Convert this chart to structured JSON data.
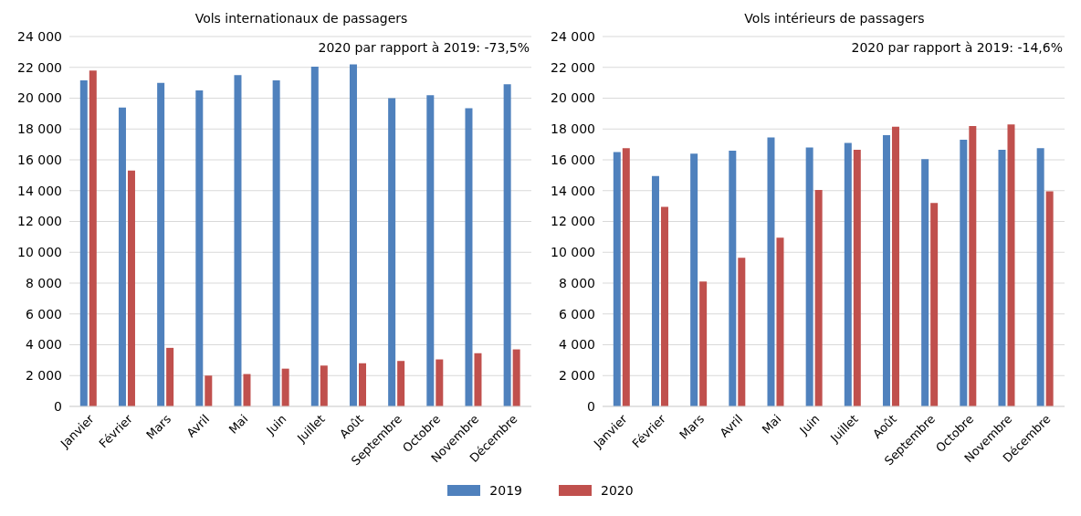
{
  "chart_data": [
    {
      "type": "bar",
      "title": "Vols internationaux de passagers",
      "categories": [
        "Janvier",
        "Février",
        "Mars",
        "Avril",
        "Mai",
        "Juin",
        "Juillet",
        "Août",
        "Septembre",
        "Octobre",
        "Novembre",
        "Décembre"
      ],
      "series": [
        {
          "name": "2019",
          "color": "#4f81bd",
          "values": [
            21150,
            19400,
            21000,
            20500,
            21500,
            21150,
            22050,
            22200,
            20000,
            20200,
            19350,
            20900
          ]
        },
        {
          "name": "2020",
          "color": "#c0504d",
          "values": [
            21800,
            15300,
            3800,
            2000,
            2100,
            2450,
            2650,
            2800,
            2950,
            3050,
            3450,
            3700
          ]
        }
      ],
      "ylim": [
        0,
        24000
      ],
      "yticks": [
        0,
        {
          "value": 2000,
          "label": "2 000"
        },
        {
          "value": 4000,
          "label": "4 000"
        },
        {
          "value": 6000,
          "label": "6 000"
        },
        {
          "value": 8000,
          "label": "8 000"
        },
        {
          "value": 10000,
          "label": "10 000"
        },
        {
          "value": 12000,
          "label": "12 000"
        },
        {
          "value": 14000,
          "label": "14 000"
        },
        {
          "value": 16000,
          "label": "16 000"
        },
        {
          "value": 18000,
          "label": "18 000"
        },
        {
          "value": 20000,
          "label": "20 000"
        },
        {
          "value": 22000,
          "label": "22 000"
        },
        {
          "value": 24000,
          "label": "24 000"
        }
      ],
      "grid": "y",
      "legend": "bottom",
      "annotations": [
        "2020 par rapport à 2019: -73,5%"
      ]
    },
    {
      "type": "bar",
      "title": "Vols intérieurs de passagers",
      "categories": [
        "Janvier",
        "Février",
        "Mars",
        "Avril",
        "Mai",
        "Juin",
        "Juillet",
        "Août",
        "Septembre",
        "Octobre",
        "Novembre",
        "Décembre"
      ],
      "series": [
        {
          "name": "2019",
          "color": "#4f81bd",
          "values": [
            16500,
            14950,
            16400,
            16600,
            17450,
            16800,
            17100,
            17600,
            16050,
            17300,
            16650,
            16750
          ]
        },
        {
          "name": "2020",
          "color": "#c0504d",
          "values": [
            16750,
            12950,
            8100,
            9650,
            10950,
            14050,
            16650,
            18150,
            13200,
            18200,
            18300,
            13950
          ]
        }
      ],
      "ylim": [
        0,
        24000
      ],
      "yticks": [
        0,
        {
          "value": 2000,
          "label": "2 000"
        },
        {
          "value": 4000,
          "label": "4 000"
        },
        {
          "value": 6000,
          "label": "6 000"
        },
        {
          "value": 8000,
          "label": "8 000"
        },
        {
          "value": 10000,
          "label": "10 000"
        },
        {
          "value": 12000,
          "label": "12 000"
        },
        {
          "value": 14000,
          "label": "14 000"
        },
        {
          "value": 16000,
          "label": "16 000"
        },
        {
          "value": 18000,
          "label": "18 000"
        },
        {
          "value": 20000,
          "label": "20 000"
        },
        {
          "value": 22000,
          "label": "22 000"
        },
        {
          "value": 24000,
          "label": "24 000"
        }
      ],
      "grid": "y",
      "legend": "bottom",
      "annotations": [
        "2020 par rapport à 2019: -14,6%"
      ]
    }
  ]
}
